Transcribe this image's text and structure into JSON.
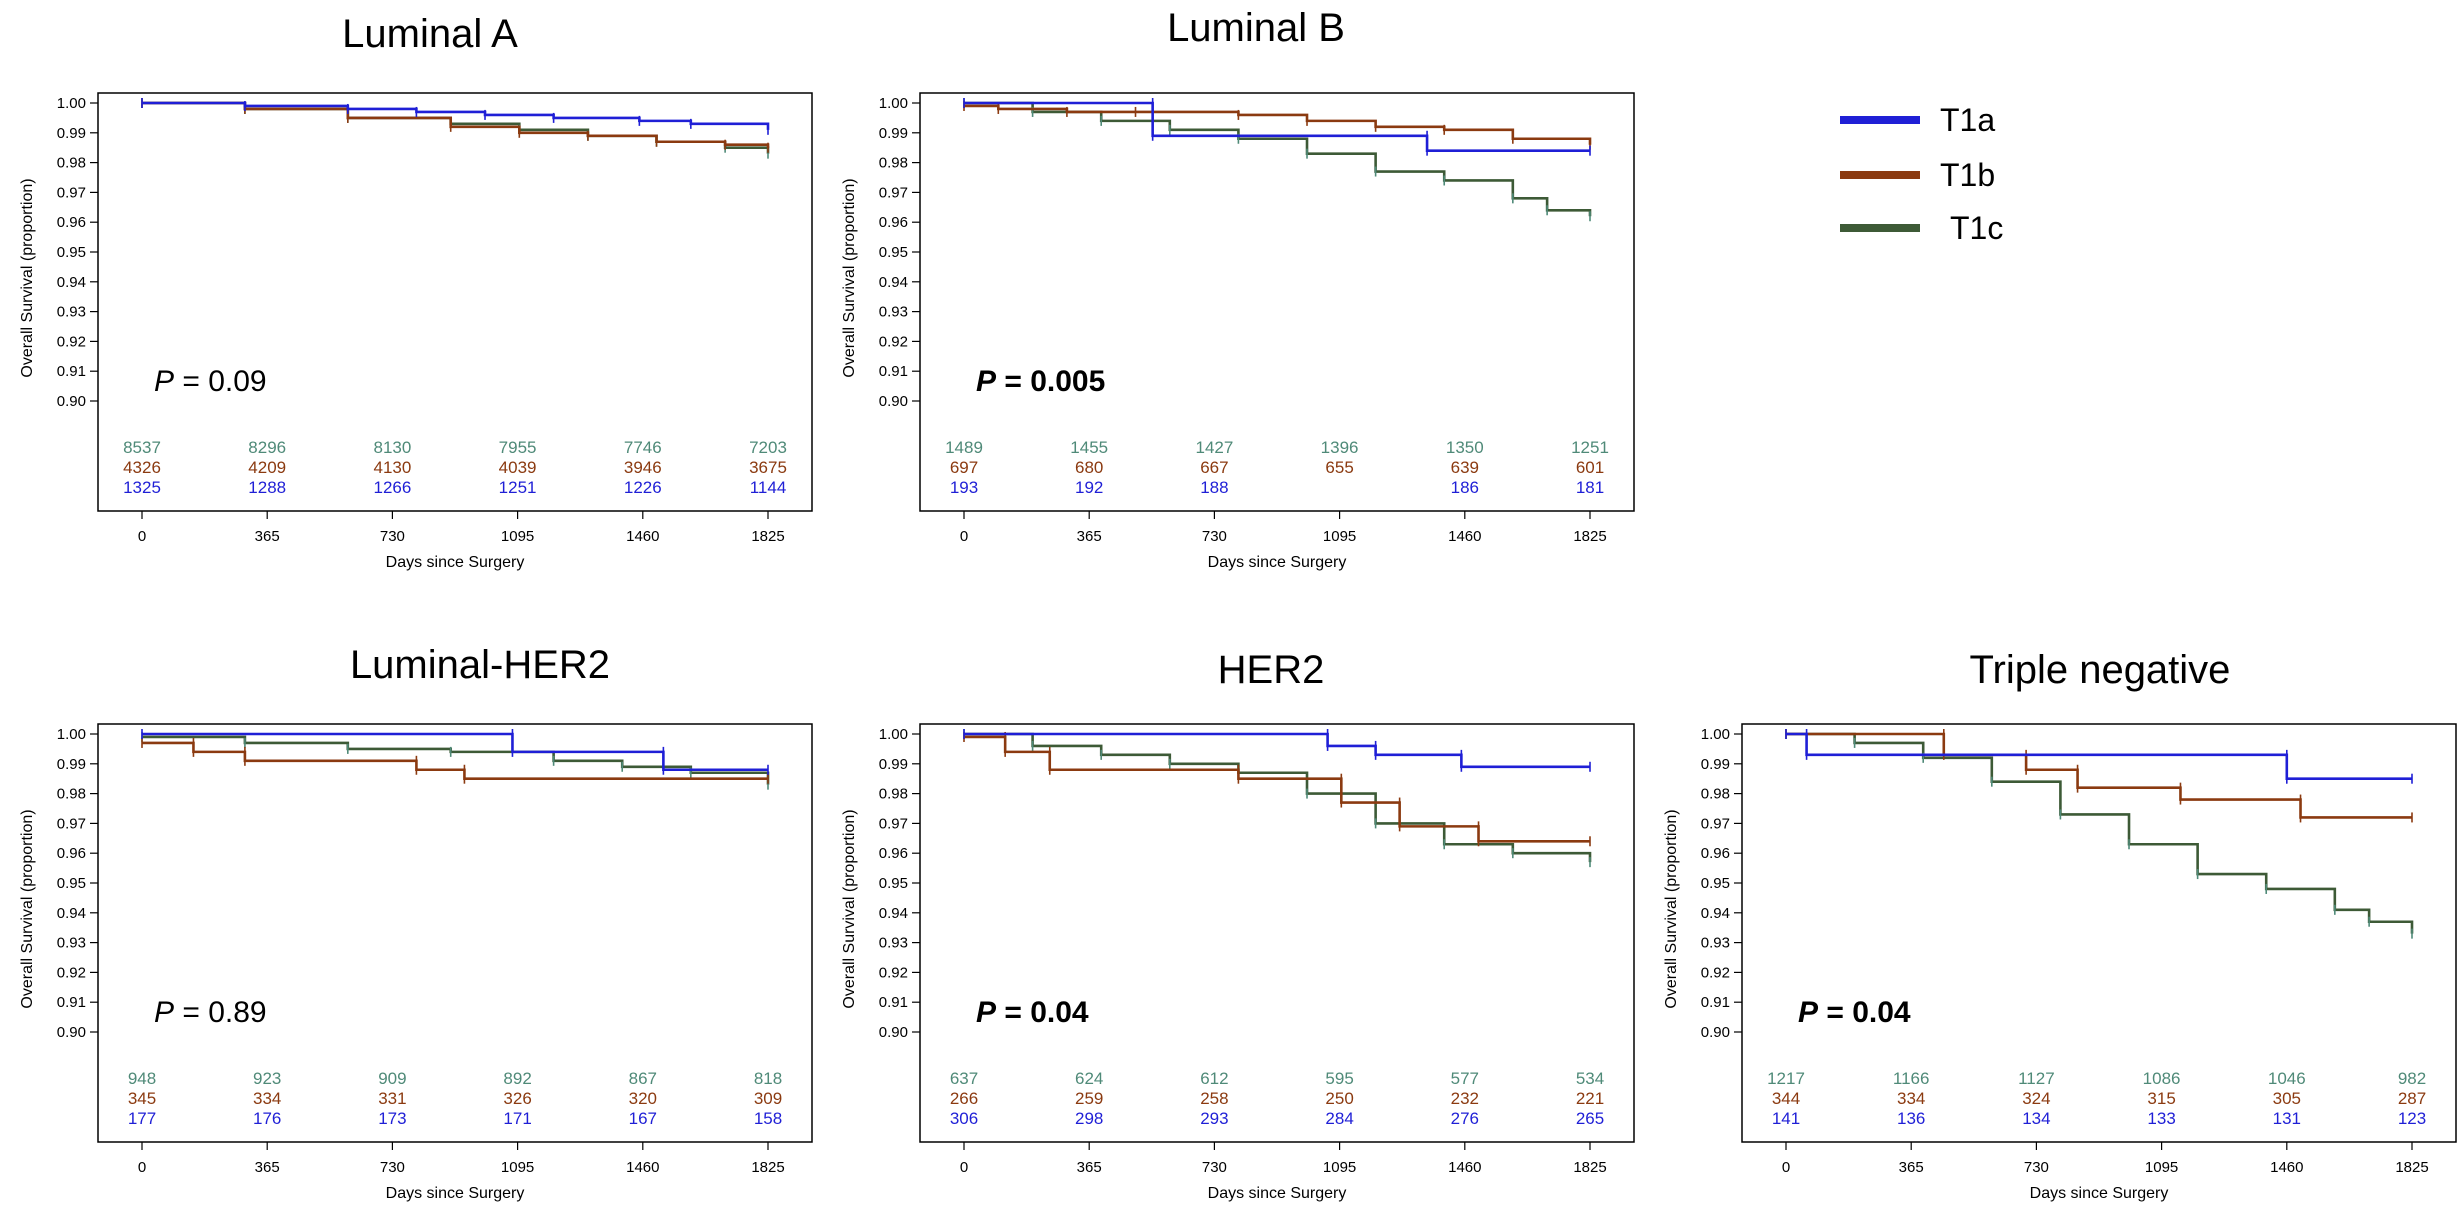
{
  "legend": [
    {
      "name": "T1a",
      "color": "#1f1fd6"
    },
    {
      "name": "T1b",
      "color": "#8b3a10"
    },
    {
      "name": "T1c",
      "color": "#3d5a36"
    }
  ],
  "colors": {
    "T1a": "#1f1fd6",
    "T1b": "#8b3a10",
    "T1c": "#3d5a36",
    "T1c_markers": "#4f8a78"
  },
  "chart_data": [
    {
      "type": "line",
      "title": "Luminal A",
      "xlabel": "Days since Surgery",
      "ylabel": "Overall Survival (proportion)",
      "xlim": [
        0,
        1825
      ],
      "ylim": [
        0.9,
        1.0
      ],
      "xticks": [
        0,
        365,
        730,
        1095,
        1460,
        1825
      ],
      "yticks": [
        0.9,
        0.91,
        0.92,
        0.93,
        0.94,
        0.95,
        0.96,
        0.97,
        0.98,
        0.99,
        1.0
      ],
      "pvalue": {
        "label": "P",
        "value": "= 0.09",
        "bold": false
      },
      "series": [
        {
          "name": "T1a",
          "x": [
            0,
            300,
            600,
            800,
            1000,
            1200,
            1450,
            1600,
            1825
          ],
          "y": [
            1.0,
            0.999,
            0.998,
            0.997,
            0.996,
            0.995,
            0.994,
            0.993,
            0.991
          ]
        },
        {
          "name": "T1b",
          "x": [
            0,
            300,
            600,
            900,
            1100,
            1300,
            1500,
            1700,
            1825
          ],
          "y": [
            1.0,
            0.998,
            0.995,
            0.992,
            0.99,
            0.989,
            0.987,
            0.986,
            0.985
          ]
        },
        {
          "name": "T1c",
          "x": [
            0,
            300,
            600,
            900,
            1100,
            1300,
            1500,
            1700,
            1825
          ],
          "y": [
            1.0,
            0.998,
            0.995,
            0.993,
            0.991,
            0.989,
            0.987,
            0.985,
            0.983
          ]
        }
      ],
      "at_risk": [
        {
          "name": "T1c",
          "values": [
            "8537",
            "8296",
            "8130",
            "7955",
            "7746",
            "7203"
          ]
        },
        {
          "name": "T1b",
          "values": [
            "4326",
            "4209",
            "4130",
            "4039",
            "3946",
            "3675"
          ]
        },
        {
          "name": "T1a",
          "values": [
            "1325",
            "1288",
            "1266",
            "1251",
            "1226",
            "1144"
          ]
        }
      ]
    },
    {
      "type": "line",
      "title": "Luminal B",
      "xlabel": "Days since Surgery",
      "ylabel": "Overall Survival (proportion)",
      "xlim": [
        0,
        1825
      ],
      "ylim": [
        0.9,
        1.0
      ],
      "xticks": [
        0,
        365,
        730,
        1095,
        1460,
        1825
      ],
      "yticks": [
        0.9,
        0.91,
        0.92,
        0.93,
        0.94,
        0.95,
        0.96,
        0.97,
        0.98,
        0.99,
        1.0
      ],
      "pvalue": {
        "label": "P",
        "value": "= 0.005",
        "bold": true
      },
      "series": [
        {
          "name": "T1a",
          "x": [
            0,
            550,
            550,
            1350,
            1350,
            1825
          ],
          "y": [
            1.0,
            1.0,
            0.989,
            0.989,
            0.984,
            0.984
          ]
        },
        {
          "name": "T1b",
          "x": [
            0,
            100,
            300,
            500,
            800,
            1000,
            1200,
            1400,
            1600,
            1825
          ],
          "y": [
            0.999,
            0.998,
            0.997,
            0.997,
            0.996,
            0.994,
            0.992,
            0.991,
            0.988,
            0.986
          ]
        },
        {
          "name": "T1c",
          "x": [
            0,
            200,
            400,
            600,
            800,
            1000,
            1200,
            1400,
            1600,
            1700,
            1825
          ],
          "y": [
            1.0,
            0.997,
            0.994,
            0.991,
            0.988,
            0.983,
            0.977,
            0.974,
            0.968,
            0.964,
            0.962
          ]
        }
      ],
      "at_risk": [
        {
          "name": "T1c",
          "values": [
            "1489",
            "1455",
            "1427",
            "1396",
            "1350",
            "1251"
          ]
        },
        {
          "name": "T1b",
          "values": [
            "697",
            "680",
            "667",
            "655",
            "639",
            "601"
          ]
        },
        {
          "name": "T1a",
          "values": [
            "193",
            "192",
            "188",
            "",
            "186",
            "181"
          ]
        }
      ]
    },
    {
      "type": "line",
      "title": "Luminal-HER2",
      "xlabel": "Days since Surgery",
      "ylabel": "Overall Survival (proportion)",
      "xlim": [
        0,
        1825
      ],
      "ylim": [
        0.9,
        1.0
      ],
      "xticks": [
        0,
        365,
        730,
        1095,
        1460,
        1825
      ],
      "yticks": [
        0.9,
        0.91,
        0.92,
        0.93,
        0.94,
        0.95,
        0.96,
        0.97,
        0.98,
        0.99,
        1.0
      ],
      "pvalue": {
        "label": "P",
        "value": "= 0.89",
        "bold": false
      },
      "series": [
        {
          "name": "T1a",
          "x": [
            0,
            1080,
            1080,
            1520,
            1520,
            1825
          ],
          "y": [
            1.0,
            1.0,
            0.994,
            0.994,
            0.988,
            0.988
          ]
        },
        {
          "name": "T1b",
          "x": [
            0,
            150,
            150,
            300,
            300,
            800,
            800,
            940,
            940,
            1825
          ],
          "y": [
            0.997,
            0.997,
            0.994,
            0.994,
            0.991,
            0.991,
            0.988,
            0.988,
            0.985,
            0.985
          ]
        },
        {
          "name": "T1c",
          "x": [
            0,
            300,
            600,
            900,
            1200,
            1400,
            1600,
            1825
          ],
          "y": [
            0.999,
            0.997,
            0.995,
            0.994,
            0.991,
            0.989,
            0.987,
            0.983
          ]
        }
      ],
      "at_risk": [
        {
          "name": "T1c",
          "values": [
            "948",
            "923",
            "909",
            "892",
            "867",
            "818"
          ]
        },
        {
          "name": "T1b",
          "values": [
            "345",
            "334",
            "331",
            "326",
            "320",
            "309"
          ]
        },
        {
          "name": "T1a",
          "values": [
            "177",
            "176",
            "173",
            "171",
            "167",
            "158"
          ]
        }
      ]
    },
    {
      "type": "line",
      "title": "HER2",
      "xlabel": "Days since Surgery",
      "ylabel": "Overall Survival (proportion)",
      "xlim": [
        0,
        1825
      ],
      "ylim": [
        0.9,
        1.0
      ],
      "xticks": [
        0,
        365,
        730,
        1095,
        1460,
        1825
      ],
      "yticks": [
        0.9,
        0.91,
        0.92,
        0.93,
        0.94,
        0.95,
        0.96,
        0.97,
        0.98,
        0.99,
        1.0
      ],
      "pvalue": {
        "label": "P",
        "value": "= 0.04",
        "bold": true
      },
      "series": [
        {
          "name": "T1a",
          "x": [
            0,
            1060,
            1060,
            1200,
            1200,
            1450,
            1450,
            1825
          ],
          "y": [
            1.0,
            1.0,
            0.996,
            0.996,
            0.993,
            0.993,
            0.989,
            0.989
          ]
        },
        {
          "name": "T1b",
          "x": [
            0,
            120,
            120,
            250,
            250,
            800,
            800,
            1100,
            1100,
            1270,
            1270,
            1500,
            1500,
            1825
          ],
          "y": [
            0.999,
            0.999,
            0.994,
            0.994,
            0.988,
            0.988,
            0.985,
            0.985,
            0.977,
            0.977,
            0.969,
            0.969,
            0.964,
            0.964
          ]
        },
        {
          "name": "T1c",
          "x": [
            0,
            200,
            400,
            600,
            800,
            1000,
            1200,
            1400,
            1600,
            1825
          ],
          "y": [
            1.0,
            0.996,
            0.993,
            0.99,
            0.987,
            0.98,
            0.97,
            0.963,
            0.96,
            0.957
          ]
        }
      ],
      "at_risk": [
        {
          "name": "T1c",
          "values": [
            "637",
            "624",
            "612",
            "595",
            "577",
            "534"
          ]
        },
        {
          "name": "T1b",
          "values": [
            "266",
            "259",
            "258",
            "250",
            "232",
            "221"
          ]
        },
        {
          "name": "T1a",
          "values": [
            "306",
            "298",
            "293",
            "284",
            "276",
            "265"
          ]
        }
      ]
    },
    {
      "type": "line",
      "title": "Triple negative",
      "xlabel": "Days since Surgery",
      "ylabel": "Overall Survival (proportion)",
      "xlim": [
        0,
        1825
      ],
      "ylim": [
        0.9,
        1.0
      ],
      "xticks": [
        0,
        365,
        730,
        1095,
        1460,
        1825
      ],
      "yticks": [
        0.9,
        0.91,
        0.92,
        0.93,
        0.94,
        0.95,
        0.96,
        0.97,
        0.98,
        0.99,
        1.0
      ],
      "pvalue": {
        "label": "P",
        "value": "= 0.04",
        "bold": true
      },
      "series": [
        {
          "name": "T1a",
          "x": [
            0,
            60,
            60,
            1460,
            1460,
            1825
          ],
          "y": [
            1.0,
            1.0,
            0.993,
            0.993,
            0.985,
            0.985
          ]
        },
        {
          "name": "T1b",
          "x": [
            0,
            460,
            460,
            700,
            700,
            850,
            850,
            1150,
            1150,
            1500,
            1500,
            1825
          ],
          "y": [
            1.0,
            1.0,
            0.993,
            0.993,
            0.988,
            0.988,
            0.982,
            0.982,
            0.978,
            0.978,
            0.972,
            0.972
          ]
        },
        {
          "name": "T1c",
          "x": [
            0,
            200,
            400,
            600,
            800,
            1000,
            1200,
            1400,
            1600,
            1700,
            1825
          ],
          "y": [
            1.0,
            0.997,
            0.992,
            0.984,
            0.973,
            0.963,
            0.953,
            0.948,
            0.941,
            0.937,
            0.933
          ]
        }
      ],
      "at_risk": [
        {
          "name": "T1c",
          "values": [
            "1217",
            "1166",
            "1127",
            "1086",
            "1046",
            "982"
          ]
        },
        {
          "name": "T1b",
          "values": [
            "344",
            "334",
            "324",
            "315",
            "305",
            "287"
          ]
        },
        {
          "name": "T1a",
          "values": [
            "141",
            "136",
            "134",
            "133",
            "131",
            "123"
          ]
        }
      ]
    }
  ]
}
